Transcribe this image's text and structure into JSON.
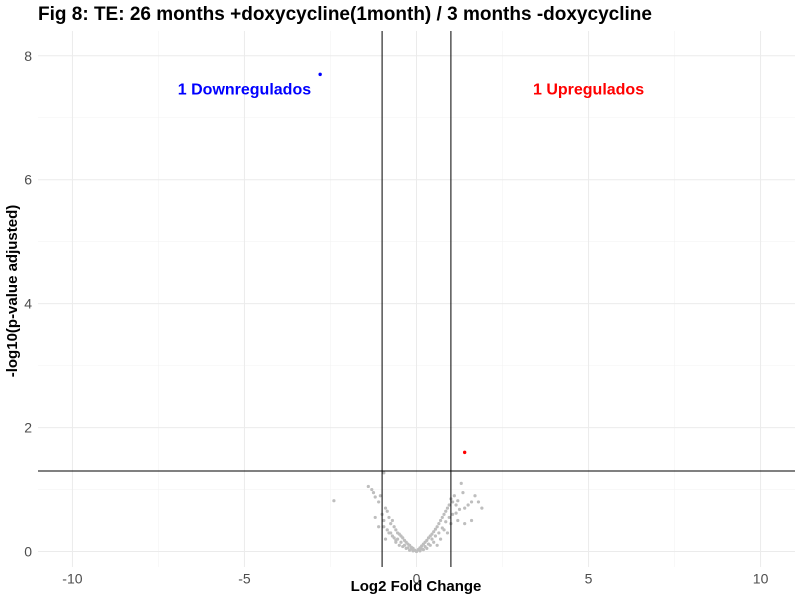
{
  "chart_data": {
    "type": "scatter",
    "title": "Fig 8: TE: 26 months +doxycycline(1month) / 3 months -doxycycline",
    "xlabel": "Log2 Fold Change",
    "ylabel": "-log10(p-value adjusted)",
    "xlim": [
      -11,
      11
    ],
    "ylim": [
      -0.25,
      8.4
    ],
    "x_ticks": [
      "-10",
      "-5",
      "0",
      "5",
      "10"
    ],
    "y_ticks": [
      "0",
      "2",
      "4",
      "6",
      "8"
    ],
    "grid": true,
    "thresholds": {
      "log2fc": [
        -1,
        1
      ],
      "neg_log10_padj": 1.3
    },
    "annotations": [
      {
        "text": "1 Downregulados",
        "x": -5,
        "y": 7.45,
        "color": "#0000ff"
      },
      {
        "text": "1 Upregulados",
        "x": 5,
        "y": 7.45,
        "color": "#ff0000"
      }
    ],
    "colors": {
      "down": "#0000ff",
      "up": "#ff0000",
      "ns": "#bebebe"
    },
    "significant_points": [
      {
        "x": -2.8,
        "y": 7.7,
        "group": "down"
      },
      {
        "x": 1.4,
        "y": 1.6,
        "group": "up"
      }
    ],
    "ns_points": [
      [
        -2.4,
        0.82
      ],
      [
        -1.4,
        1.05
      ],
      [
        -1.3,
        1.0
      ],
      [
        -1.25,
        0.95
      ],
      [
        -1.2,
        0.88
      ],
      [
        -1.1,
        0.8
      ],
      [
        -1.05,
        0.9
      ],
      [
        -0.95,
        1.27
      ],
      [
        -1.0,
        0.6
      ],
      [
        -0.95,
        0.5
      ],
      [
        -0.9,
        0.7
      ],
      [
        -0.85,
        0.65
      ],
      [
        -0.8,
        0.55
      ],
      [
        -0.75,
        0.45
      ],
      [
        -0.7,
        0.5
      ],
      [
        -0.65,
        0.4
      ],
      [
        -0.6,
        0.35
      ],
      [
        -0.55,
        0.3
      ],
      [
        -0.5,
        0.28
      ],
      [
        -0.45,
        0.25
      ],
      [
        -0.4,
        0.22
      ],
      [
        -0.35,
        0.18
      ],
      [
        -0.3,
        0.15
      ],
      [
        -0.25,
        0.12
      ],
      [
        -0.2,
        0.1
      ],
      [
        -0.15,
        0.07
      ],
      [
        -0.1,
        0.05
      ],
      [
        -0.05,
        0.02
      ],
      [
        0.0,
        0.0
      ],
      [
        0.05,
        0.03
      ],
      [
        0.1,
        0.06
      ],
      [
        0.15,
        0.09
      ],
      [
        0.2,
        0.12
      ],
      [
        0.25,
        0.15
      ],
      [
        0.3,
        0.18
      ],
      [
        0.35,
        0.22
      ],
      [
        0.4,
        0.25
      ],
      [
        0.45,
        0.28
      ],
      [
        0.5,
        0.32
      ],
      [
        0.55,
        0.36
      ],
      [
        0.6,
        0.4
      ],
      [
        0.65,
        0.45
      ],
      [
        0.7,
        0.5
      ],
      [
        0.75,
        0.55
      ],
      [
        0.8,
        0.6
      ],
      [
        0.85,
        0.65
      ],
      [
        0.9,
        0.7
      ],
      [
        0.95,
        0.75
      ],
      [
        1.0,
        0.85
      ],
      [
        1.05,
        0.8
      ],
      [
        1.1,
        0.9
      ],
      [
        1.15,
        0.75
      ],
      [
        1.2,
        0.82
      ],
      [
        1.3,
        1.1
      ],
      [
        1.35,
        0.95
      ],
      [
        1.4,
        0.7
      ],
      [
        1.5,
        0.75
      ],
      [
        1.6,
        0.8
      ],
      [
        1.7,
        0.9
      ],
      [
        1.8,
        0.8
      ],
      [
        1.9,
        0.7
      ],
      [
        1.6,
        0.5
      ],
      [
        1.4,
        0.45
      ],
      [
        1.2,
        0.5
      ],
      [
        -1.1,
        0.4
      ],
      [
        -0.9,
        0.2
      ],
      [
        -0.6,
        0.15
      ],
      [
        -0.3,
        0.05
      ],
      [
        0.3,
        0.05
      ],
      [
        0.6,
        0.1
      ],
      [
        0.9,
        0.3
      ],
      [
        -0.8,
        0.3
      ],
      [
        -0.7,
        0.25
      ],
      [
        -0.5,
        0.1
      ],
      [
        -0.4,
        0.08
      ],
      [
        0.4,
        0.1
      ],
      [
        0.5,
        0.15
      ],
      [
        0.7,
        0.2
      ],
      [
        0.8,
        0.35
      ],
      [
        1.0,
        0.45
      ],
      [
        -1.2,
        0.55
      ],
      [
        -0.6,
        0.18
      ],
      [
        0.2,
        0.03
      ],
      [
        -0.2,
        0.02
      ],
      [
        0.1,
        0.01
      ],
      [
        -0.1,
        0.01
      ],
      [
        0.15,
        0.04
      ],
      [
        -0.15,
        0.04
      ],
      [
        0.25,
        0.08
      ],
      [
        -0.25,
        0.06
      ],
      [
        0.35,
        0.12
      ],
      [
        -0.35,
        0.1
      ],
      [
        0.45,
        0.2
      ],
      [
        -0.45,
        0.15
      ],
      [
        0.55,
        0.25
      ],
      [
        -0.55,
        0.2
      ],
      [
        0.65,
        0.3
      ],
      [
        -0.65,
        0.22
      ],
      [
        0.75,
        0.38
      ],
      [
        -0.75,
        0.3
      ],
      [
        0.85,
        0.48
      ],
      [
        -0.85,
        0.35
      ],
      [
        0.95,
        0.55
      ],
      [
        -0.95,
        0.4
      ],
      [
        1.05,
        0.6
      ],
      [
        1.15,
        0.62
      ],
      [
        1.25,
        0.68
      ]
    ]
  }
}
